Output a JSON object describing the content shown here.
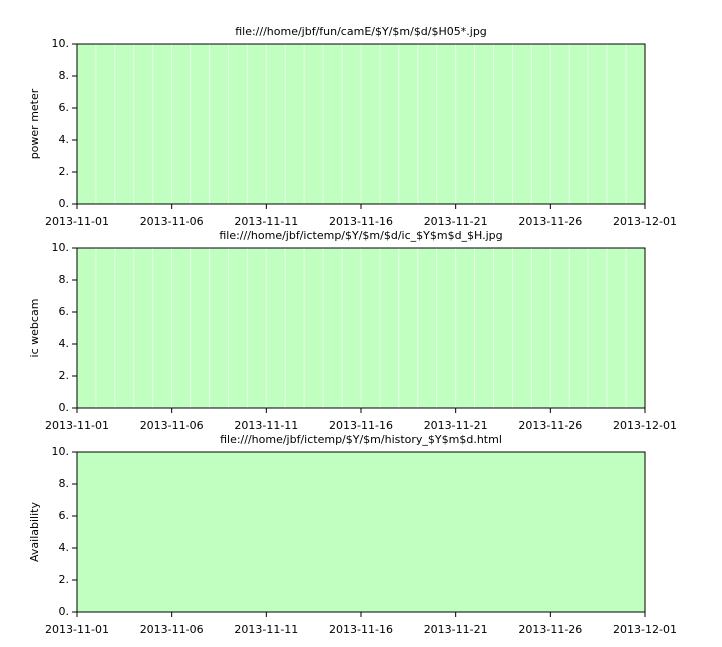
{
  "chart_data": [
    {
      "type": "bar",
      "title": "file:///home/jbf/fun/camE/$Y/$m/$d/$H05*.jpg",
      "ylabel": "power meter",
      "x": [
        "2013-11-01",
        "2013-11-02",
        "2013-11-03",
        "2013-11-04",
        "2013-11-05",
        "2013-11-06",
        "2013-11-07",
        "2013-11-08",
        "2013-11-09",
        "2013-11-10",
        "2013-11-11",
        "2013-11-12",
        "2013-11-13",
        "2013-11-14",
        "2013-11-15",
        "2013-11-16",
        "2013-11-17",
        "2013-11-18",
        "2013-11-19",
        "2013-11-20",
        "2013-11-21",
        "2013-11-22",
        "2013-11-23",
        "2013-11-24",
        "2013-11-25",
        "2013-11-26",
        "2013-11-27",
        "2013-11-28",
        "2013-11-29",
        "2013-11-30"
      ],
      "values": [
        10,
        10,
        10,
        10,
        10,
        10,
        10,
        10,
        10,
        10,
        10,
        10,
        10,
        10,
        10,
        10,
        10,
        10,
        10,
        10,
        10,
        10,
        10,
        10,
        10,
        10,
        10,
        10,
        10,
        10
      ],
      "color": "#c0ffc0",
      "edgecolor": "#e6ffe6",
      "xlim": [
        "2013-11-01",
        "2013-12-01"
      ],
      "xticks": [
        "2013-11-01",
        "2013-11-06",
        "2013-11-11",
        "2013-11-16",
        "2013-11-21",
        "2013-11-26",
        "2013-12-01"
      ],
      "ylim": [
        0,
        10
      ],
      "yticks": [
        {
          "value": 0,
          "label": "0."
        },
        {
          "value": 2,
          "label": "2."
        },
        {
          "value": 4,
          "label": "4."
        },
        {
          "value": 6,
          "label": "6."
        },
        {
          "value": 8,
          "label": "8."
        },
        {
          "value": 10,
          "label": "10."
        }
      ]
    },
    {
      "type": "bar",
      "title": "file:///home/jbf/ictemp/$Y/$m/$d/ic_$Y$m$d_$H.jpg",
      "ylabel": "ic webcam",
      "x": [
        "2013-11-01",
        "2013-11-02",
        "2013-11-03",
        "2013-11-04",
        "2013-11-05",
        "2013-11-06",
        "2013-11-07",
        "2013-11-08",
        "2013-11-09",
        "2013-11-10",
        "2013-11-11",
        "2013-11-12",
        "2013-11-13",
        "2013-11-14",
        "2013-11-15",
        "2013-11-16",
        "2013-11-17",
        "2013-11-18",
        "2013-11-19",
        "2013-11-20",
        "2013-11-21",
        "2013-11-22",
        "2013-11-23",
        "2013-11-24",
        "2013-11-25",
        "2013-11-26",
        "2013-11-27",
        "2013-11-28",
        "2013-11-29",
        "2013-11-30"
      ],
      "values": [
        10,
        10,
        10,
        10,
        10,
        10,
        10,
        10,
        10,
        10,
        10,
        10,
        10,
        10,
        10,
        10,
        10,
        10,
        10,
        10,
        10,
        10,
        10,
        10,
        10,
        10,
        10,
        10,
        10,
        10
      ],
      "color": "#c0ffc0",
      "edgecolor": "#e6ffe6",
      "xlim": [
        "2013-11-01",
        "2013-12-01"
      ],
      "xticks": [
        "2013-11-01",
        "2013-11-06",
        "2013-11-11",
        "2013-11-16",
        "2013-11-21",
        "2013-11-26",
        "2013-12-01"
      ],
      "ylim": [
        0,
        10
      ],
      "yticks": [
        {
          "value": 0,
          "label": "0."
        },
        {
          "value": 2,
          "label": "2."
        },
        {
          "value": 4,
          "label": "4."
        },
        {
          "value": 6,
          "label": "6."
        },
        {
          "value": 8,
          "label": "8."
        },
        {
          "value": 10,
          "label": "10."
        }
      ]
    },
    {
      "type": "bar",
      "title": "file:///home/jbf/ictemp/$Y/$m/history_$Y$m$d.html",
      "ylabel": "Availability",
      "x": [
        "2013-11-01",
        "2013-11-02",
        "2013-11-03",
        "2013-11-04",
        "2013-11-05",
        "2013-11-06",
        "2013-11-07",
        "2013-11-08",
        "2013-11-09",
        "2013-11-10",
        "2013-11-11",
        "2013-11-12",
        "2013-11-13",
        "2013-11-14",
        "2013-11-15",
        "2013-11-16",
        "2013-11-17",
        "2013-11-18",
        "2013-11-19",
        "2013-11-20",
        "2013-11-21",
        "2013-11-22",
        "2013-11-23",
        "2013-11-24",
        "2013-11-25",
        "2013-11-26",
        "2013-11-27",
        "2013-11-28",
        "2013-11-29",
        "2013-11-30"
      ],
      "values": [
        10,
        10,
        10,
        10,
        10,
        10,
        10,
        10,
        10,
        10,
        10,
        10,
        10,
        10,
        10,
        10,
        10,
        10,
        10,
        10,
        10,
        10,
        10,
        10,
        10,
        10,
        10,
        10,
        10,
        10
      ],
      "color": "#c0ffc0",
      "edgecolor": "#c0ffc0",
      "xlim": [
        "2013-11-01",
        "2013-12-01"
      ],
      "xticks": [
        "2013-11-01",
        "2013-11-06",
        "2013-11-11",
        "2013-11-16",
        "2013-11-21",
        "2013-11-26",
        "2013-12-01"
      ],
      "ylim": [
        0,
        10
      ],
      "yticks": [
        {
          "value": 0,
          "label": "0."
        },
        {
          "value": 2,
          "label": "2."
        },
        {
          "value": 4,
          "label": "4."
        },
        {
          "value": 6,
          "label": "6."
        },
        {
          "value": 8,
          "label": "8."
        },
        {
          "value": 10,
          "label": "10."
        }
      ]
    }
  ]
}
